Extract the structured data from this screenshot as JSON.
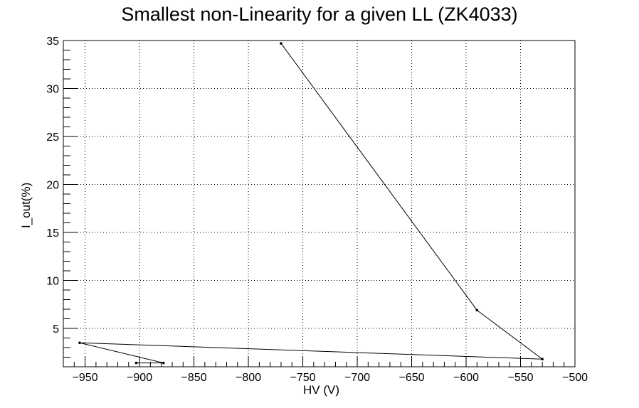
{
  "chart_data": {
    "type": "line",
    "title": "Smallest non-Linearity for a given LL (ZK4033)",
    "xlabel": "HV (V)",
    "ylabel": "I_out(%)",
    "xlim": [
      -970,
      -500
    ],
    "ylim": [
      1,
      35
    ],
    "x_ticks": [
      -950,
      -900,
      -850,
      -800,
      -750,
      -700,
      -650,
      -600,
      -550,
      -500
    ],
    "y_ticks": [
      5,
      10,
      15,
      20,
      25,
      30,
      35
    ],
    "grid": true,
    "series": [
      {
        "points": [
          {
            "x": -770,
            "y": 34.7
          },
          {
            "x": -590,
            "y": 6.9
          },
          {
            "x": -530,
            "y": 1.8
          },
          {
            "x": -955,
            "y": 3.5
          },
          {
            "x": -878,
            "y": 1.4
          },
          {
            "x": -903,
            "y": 1.4
          }
        ]
      }
    ]
  }
}
